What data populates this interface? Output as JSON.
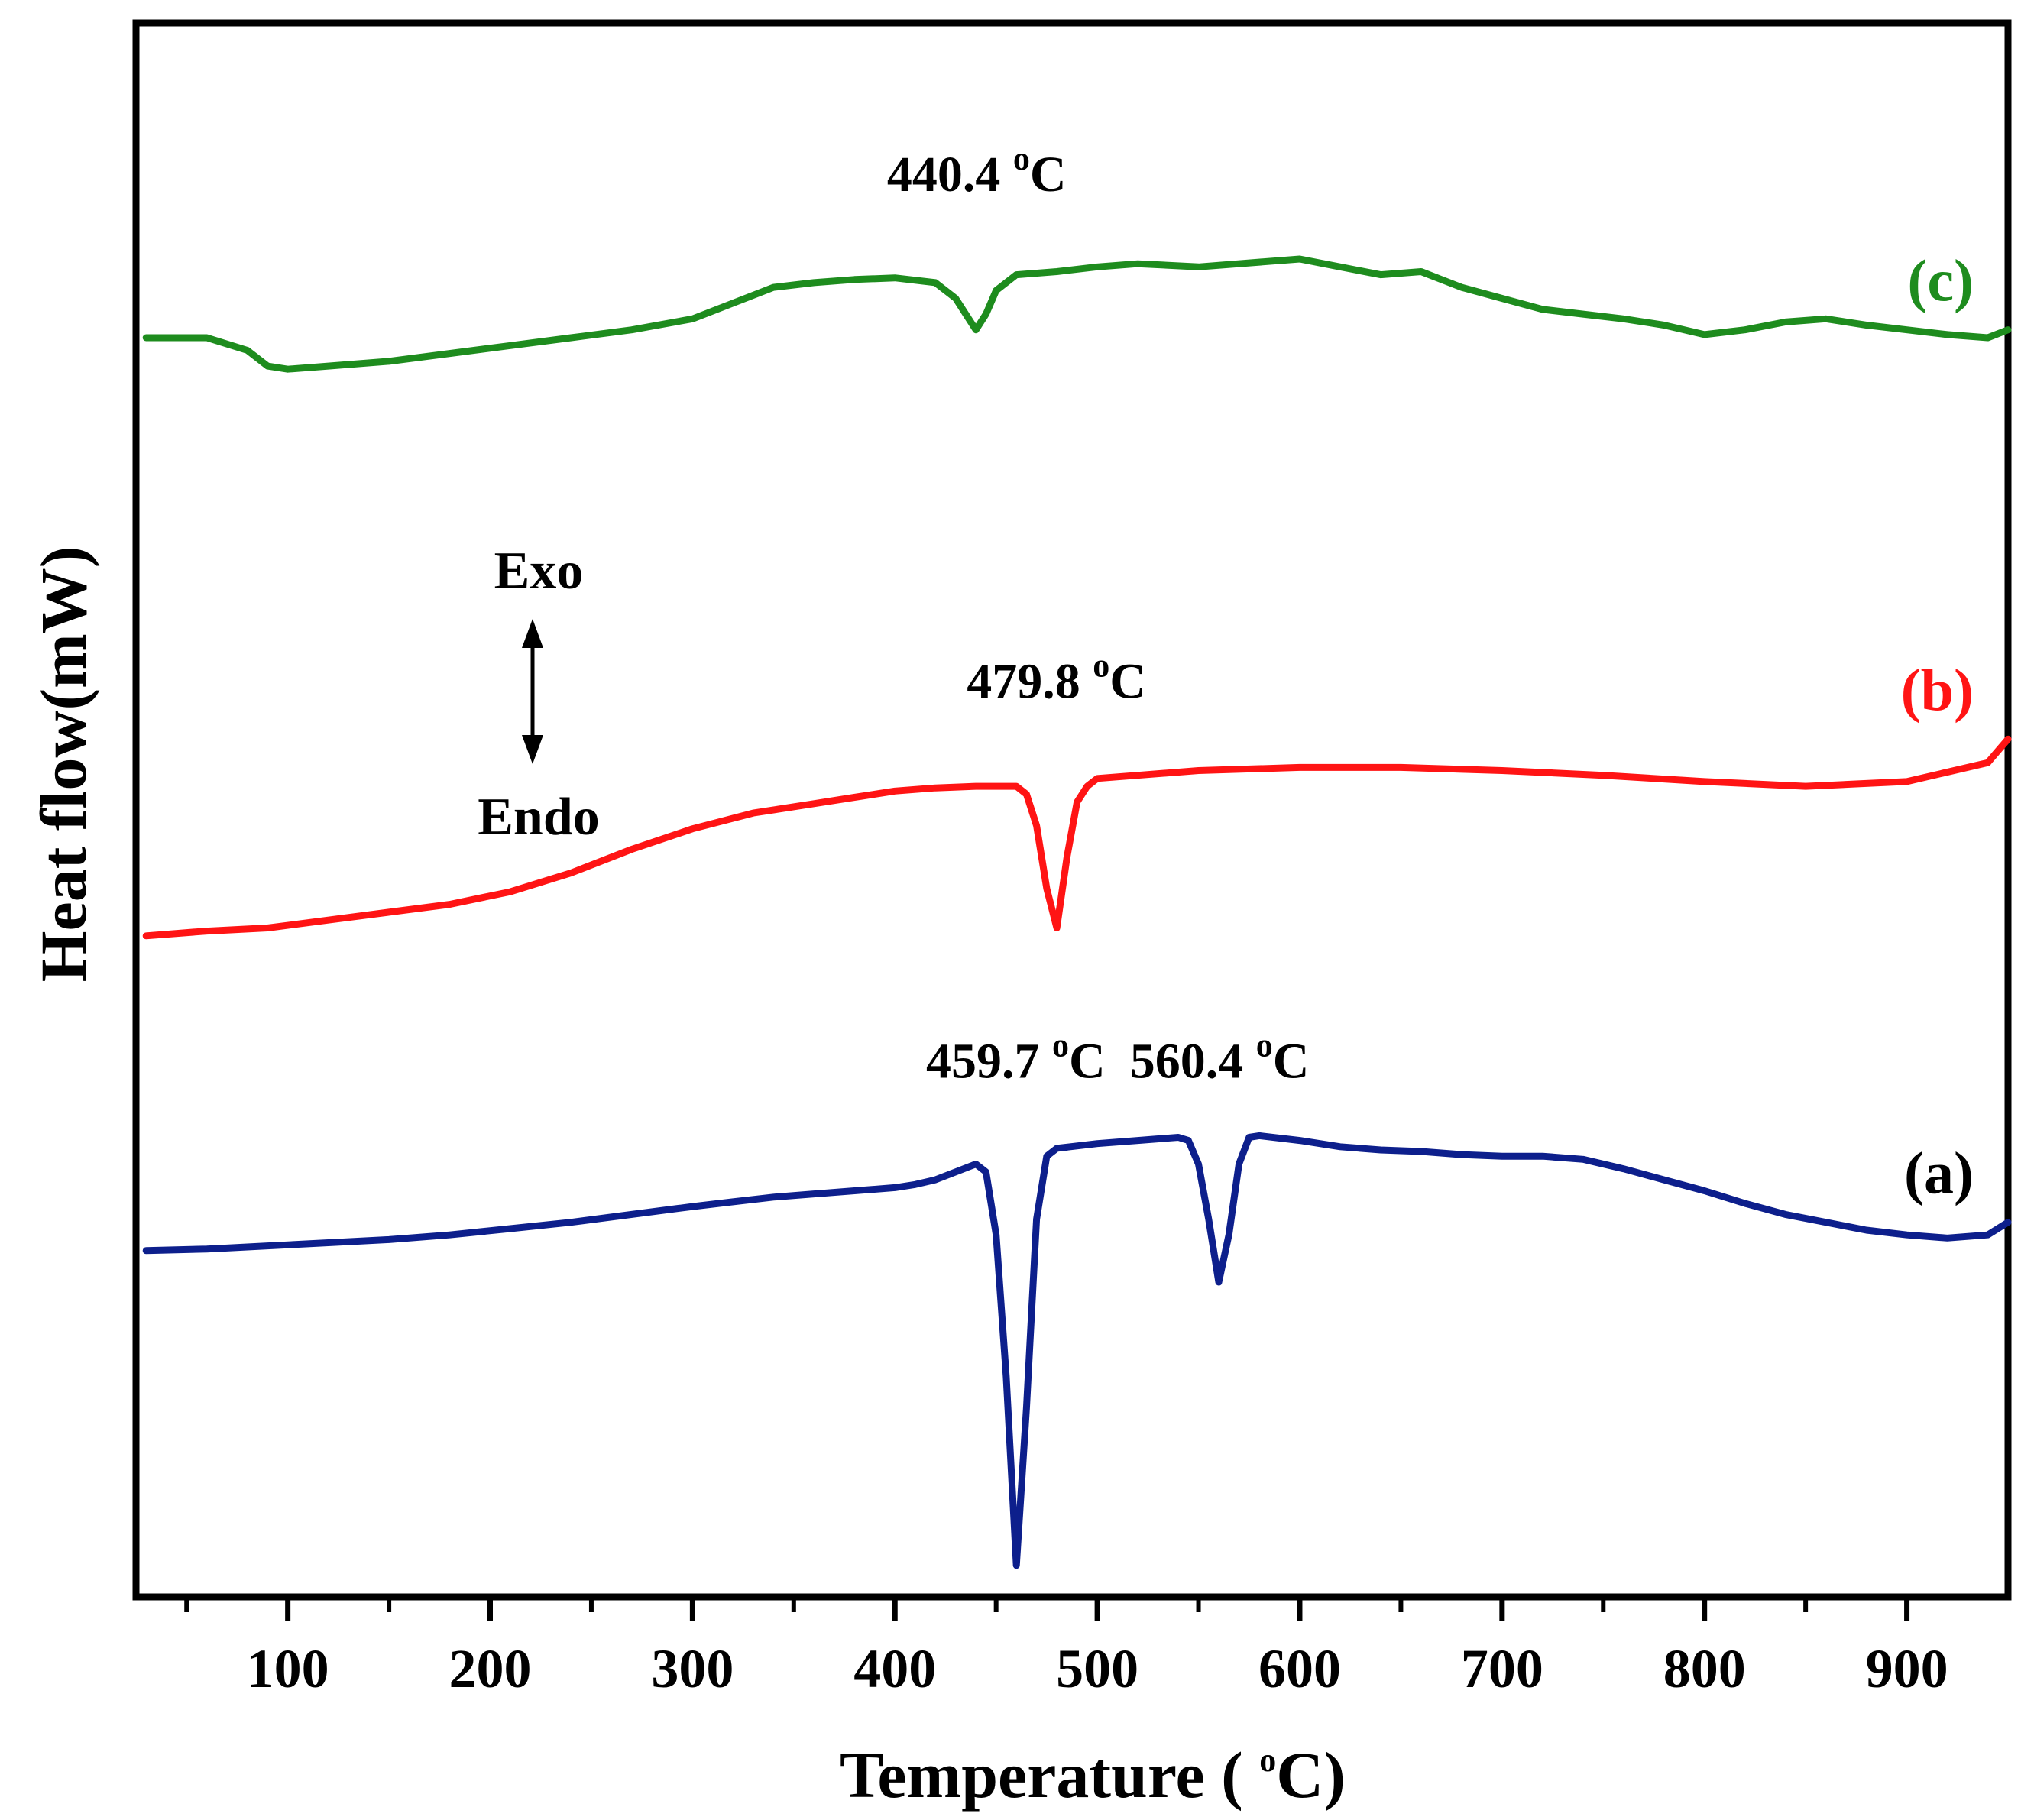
{
  "chart_data": {
    "type": "line",
    "title": "",
    "xlabel": "Temperature ( °C)",
    "xlabel_parts": {
      "pre": "Temperature ( ",
      "sup": "o",
      "post": "C)"
    },
    "ylabel": "Heat flow(mW)",
    "xlim": [
      25,
      950
    ],
    "ylim": [
      -2.2,
      7.8
    ],
    "x_ticks": [
      100,
      200,
      300,
      400,
      500,
      600,
      700,
      800,
      900
    ],
    "x_tick_labels": [
      "100",
      "200",
      "300",
      "400",
      "500",
      "600",
      "700",
      "800",
      "900"
    ],
    "y_ticks": [],
    "grid": false,
    "legend": "none",
    "direction_labels": {
      "up": "Exo",
      "down": "Endo"
    },
    "series": [
      {
        "name": "(a)",
        "color": "#0d1f8c",
        "label_color": "#000000",
        "x": [
          30,
          60,
          90,
          120,
          150,
          180,
          210,
          240,
          270,
          300,
          320,
          340,
          360,
          380,
          400,
          410,
          420,
          430,
          440,
          445,
          450,
          455,
          460,
          465,
          470,
          475,
          480,
          500,
          520,
          540,
          545,
          550,
          555,
          560,
          565,
          570,
          575,
          580,
          600,
          620,
          640,
          660,
          680,
          700,
          720,
          740,
          760,
          780,
          800,
          820,
          840,
          860,
          880,
          900,
          920,
          940,
          950
        ],
        "y": [
          0,
          0.01,
          0.03,
          0.05,
          0.07,
          0.1,
          0.14,
          0.18,
          0.23,
          0.28,
          0.31,
          0.34,
          0.36,
          0.38,
          0.4,
          0.42,
          0.45,
          0.5,
          0.55,
          0.5,
          0.1,
          -0.8,
          -2.0,
          -1.0,
          0.2,
          0.6,
          0.65,
          0.68,
          0.7,
          0.72,
          0.7,
          0.55,
          0.2,
          -0.2,
          0.1,
          0.55,
          0.72,
          0.73,
          0.7,
          0.66,
          0.64,
          0.63,
          0.61,
          0.6,
          0.6,
          0.58,
          0.52,
          0.45,
          0.38,
          0.3,
          0.23,
          0.18,
          0.13,
          0.1,
          0.08,
          0.1,
          0.18
        ]
      },
      {
        "name": "(b)",
        "color": "#ff1414",
        "label_color": "#ff1414",
        "x": [
          30,
          60,
          90,
          120,
          150,
          180,
          210,
          240,
          270,
          300,
          330,
          360,
          380,
          400,
          420,
          440,
          460,
          465,
          470,
          475,
          480,
          485,
          490,
          495,
          500,
          520,
          550,
          600,
          650,
          700,
          750,
          800,
          850,
          900,
          940,
          950
        ],
        "y": [
          2.0,
          2.03,
          2.05,
          2.1,
          2.15,
          2.2,
          2.28,
          2.4,
          2.55,
          2.68,
          2.78,
          2.84,
          2.88,
          2.92,
          2.94,
          2.95,
          2.95,
          2.9,
          2.7,
          2.3,
          2.05,
          2.5,
          2.85,
          2.95,
          3.0,
          3.02,
          3.05,
          3.07,
          3.07,
          3.05,
          3.02,
          2.98,
          2.95,
          2.98,
          3.1,
          3.25
        ]
      },
      {
        "name": "(c)",
        "color": "#1e8c1e",
        "label_color": "#1e8c1e",
        "x": [
          30,
          60,
          80,
          90,
          100,
          120,
          150,
          180,
          210,
          240,
          270,
          300,
          320,
          340,
          360,
          380,
          400,
          420,
          430,
          435,
          440,
          445,
          450,
          460,
          480,
          500,
          520,
          550,
          600,
          620,
          640,
          660,
          680,
          700,
          720,
          740,
          760,
          780,
          800,
          820,
          840,
          860,
          880,
          900,
          920,
          940,
          950
        ],
        "y": [
          5.8,
          5.8,
          5.72,
          5.62,
          5.6,
          5.62,
          5.65,
          5.7,
          5.75,
          5.8,
          5.85,
          5.92,
          6.02,
          6.12,
          6.15,
          6.17,
          6.18,
          6.15,
          6.05,
          5.95,
          5.85,
          5.95,
          6.1,
          6.2,
          6.22,
          6.25,
          6.27,
          6.25,
          6.3,
          6.25,
          6.2,
          6.22,
          6.12,
          6.05,
          5.98,
          5.95,
          5.92,
          5.88,
          5.82,
          5.85,
          5.9,
          5.92,
          5.88,
          5.85,
          5.82,
          5.8,
          5.85
        ]
      }
    ],
    "annotations": [
      {
        "series": "(a)",
        "value": "459.7",
        "sup": "o",
        "unit": "C",
        "x": 459.7
      },
      {
        "series": "(a)",
        "value": "560.4",
        "sup": "o",
        "unit": "C",
        "x": 560.4
      },
      {
        "series": "(b)",
        "value": "479.8",
        "sup": "o",
        "unit": "C",
        "x": 479.8
      },
      {
        "series": "(c)",
        "value": "440.4",
        "sup": "o",
        "unit": "C",
        "x": 440.4
      }
    ]
  }
}
